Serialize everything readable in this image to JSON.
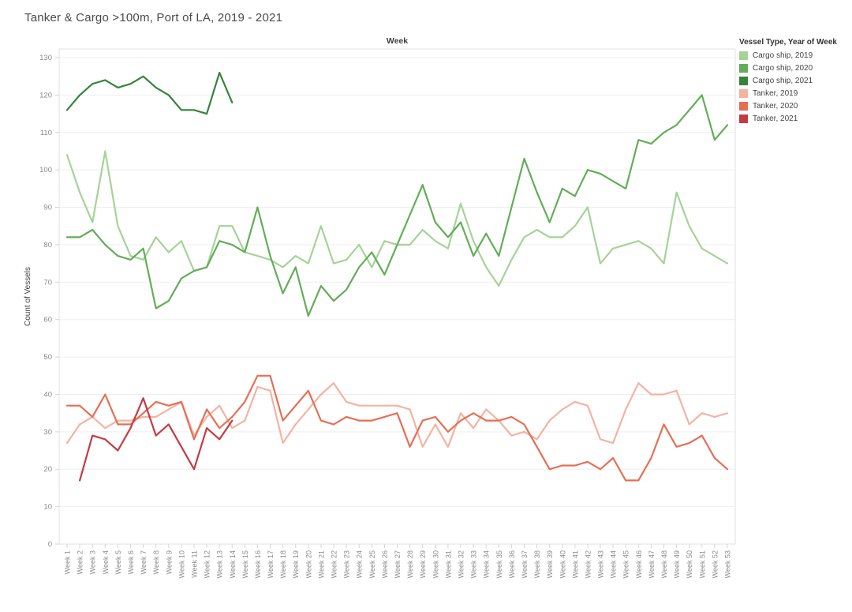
{
  "title": "Tanker & Cargo >100m, Port of LA, 2019 - 2021",
  "legend": {
    "title": "Vessel Type, Year of Week",
    "items": [
      {
        "label": "Cargo ship, 2019",
        "color": "#a5d398"
      },
      {
        "label": "Cargo ship, 2020",
        "color": "#63ad58"
      },
      {
        "label": "Cargo ship, 2021",
        "color": "#37833c"
      },
      {
        "label": "Tanker, 2019",
        "color": "#f4b3a2"
      },
      {
        "label": "Tanker, 2020",
        "color": "#e56f56"
      },
      {
        "label": "Tanker, 2021",
        "color": "#c23b43"
      }
    ]
  },
  "chart_data": {
    "type": "line",
    "title": "Tanker & Cargo >100m, Port of LA, 2019 - 2021",
    "xlabel": "Week",
    "ylabel": "Count of Vessels",
    "ylim": [
      0,
      130
    ],
    "yticks": [
      0,
      10,
      20,
      30,
      40,
      50,
      60,
      70,
      80,
      90,
      100,
      110,
      120,
      130
    ],
    "grid": true,
    "legend_position": "top-right",
    "categories": [
      "Week 1",
      "Week 2",
      "Week 3",
      "Week 4",
      "Week 5",
      "Week 6",
      "Week 7",
      "Week 8",
      "Week 9",
      "Week 10",
      "Week 11",
      "Week 12",
      "Week 13",
      "Week 14",
      "Week 15",
      "Week 16",
      "Week 17",
      "Week 18",
      "Week 19",
      "Week 20",
      "Week 21",
      "Week 22",
      "Week 23",
      "Week 24",
      "Week 25",
      "Week 26",
      "Week 27",
      "Week 28",
      "Week 29",
      "Week 30",
      "Week 31",
      "Week 32",
      "Week 33",
      "Week 34",
      "Week 35",
      "Week 36",
      "Week 37",
      "Week 38",
      "Week 39",
      "Week 40",
      "Week 41",
      "Week 42",
      "Week 43",
      "Week 44",
      "Week 45",
      "Week 46",
      "Week 47",
      "Week 48",
      "Week 49",
      "Week 50",
      "Week 51",
      "Week 52",
      "Week 53"
    ],
    "series": [
      {
        "name": "Cargo ship, 2019",
        "color": "#a5d398",
        "values": [
          104,
          94,
          86,
          105,
          85,
          77,
          76,
          82,
          78,
          81,
          73,
          74,
          85,
          85,
          78,
          77,
          76,
          74,
          77,
          75,
          85,
          75,
          76,
          80,
          74,
          81,
          80,
          80,
          84,
          81,
          79,
          91,
          81,
          74,
          69,
          76,
          82,
          84,
          82,
          82,
          85,
          90,
          75,
          79,
          80,
          81,
          79,
          75,
          94,
          85,
          79,
          77,
          75
        ]
      },
      {
        "name": "Cargo ship, 2020",
        "color": "#63ad58",
        "values": [
          82,
          82,
          84,
          80,
          77,
          76,
          79,
          63,
          65,
          71,
          73,
          74,
          81,
          80,
          78,
          90,
          77,
          67,
          74,
          61,
          69,
          65,
          68,
          74,
          78,
          72,
          80,
          88,
          96,
          86,
          82,
          86,
          77,
          83,
          77,
          90,
          103,
          94,
          86,
          95,
          93,
          100,
          99,
          97,
          95,
          108,
          107,
          110,
          112,
          116,
          120,
          108,
          112
        ]
      },
      {
        "name": "Cargo ship, 2021",
        "color": "#37833c",
        "values": [
          116,
          120,
          123,
          124,
          122,
          123,
          125,
          122,
          120,
          116,
          116,
          115,
          126,
          118,
          null,
          null,
          null,
          null,
          null,
          null,
          null,
          null,
          null,
          null,
          null,
          null,
          null,
          null,
          null,
          null,
          null,
          null,
          null,
          null,
          null,
          null,
          null,
          null,
          null,
          null,
          null,
          null,
          null,
          null,
          null,
          null,
          null,
          null,
          null,
          null,
          null,
          null,
          null
        ]
      },
      {
        "name": "Tanker, 2019",
        "color": "#f4b3a2",
        "values": [
          27,
          32,
          34,
          31,
          33,
          33,
          34,
          34,
          36,
          38,
          29,
          34,
          37,
          31,
          33,
          42,
          41,
          27,
          32,
          36,
          40,
          43,
          38,
          37,
          37,
          37,
          37,
          36,
          26,
          32,
          26,
          35,
          31,
          36,
          33,
          29,
          30,
          28,
          33,
          36,
          38,
          37,
          28,
          27,
          36,
          43,
          40,
          40,
          41,
          32,
          35,
          34,
          35
        ]
      },
      {
        "name": "Tanker, 2020",
        "color": "#e56f56",
        "values": [
          37,
          37,
          34,
          40,
          32,
          32,
          35,
          38,
          37,
          38,
          28,
          36,
          31,
          34,
          38,
          45,
          45,
          33,
          37,
          41,
          33,
          32,
          34,
          33,
          33,
          34,
          35,
          26,
          33,
          34,
          30,
          33,
          35,
          33,
          33,
          34,
          32,
          26,
          20,
          21,
          21,
          22,
          20,
          23,
          17,
          17,
          23,
          32,
          26,
          27,
          29,
          23,
          20
        ]
      },
      {
        "name": "Tanker, 2021",
        "color": "#c23b43",
        "values": [
          null,
          17,
          29,
          28,
          25,
          31,
          39,
          29,
          32,
          26,
          20,
          31,
          28,
          33,
          null,
          null,
          null,
          null,
          null,
          null,
          null,
          null,
          null,
          null,
          null,
          null,
          null,
          null,
          null,
          null,
          null,
          null,
          null,
          null,
          null,
          null,
          null,
          null,
          null,
          null,
          null,
          null,
          null,
          null,
          null,
          null,
          null,
          null,
          null,
          null,
          null,
          null,
          null
        ]
      }
    ]
  }
}
